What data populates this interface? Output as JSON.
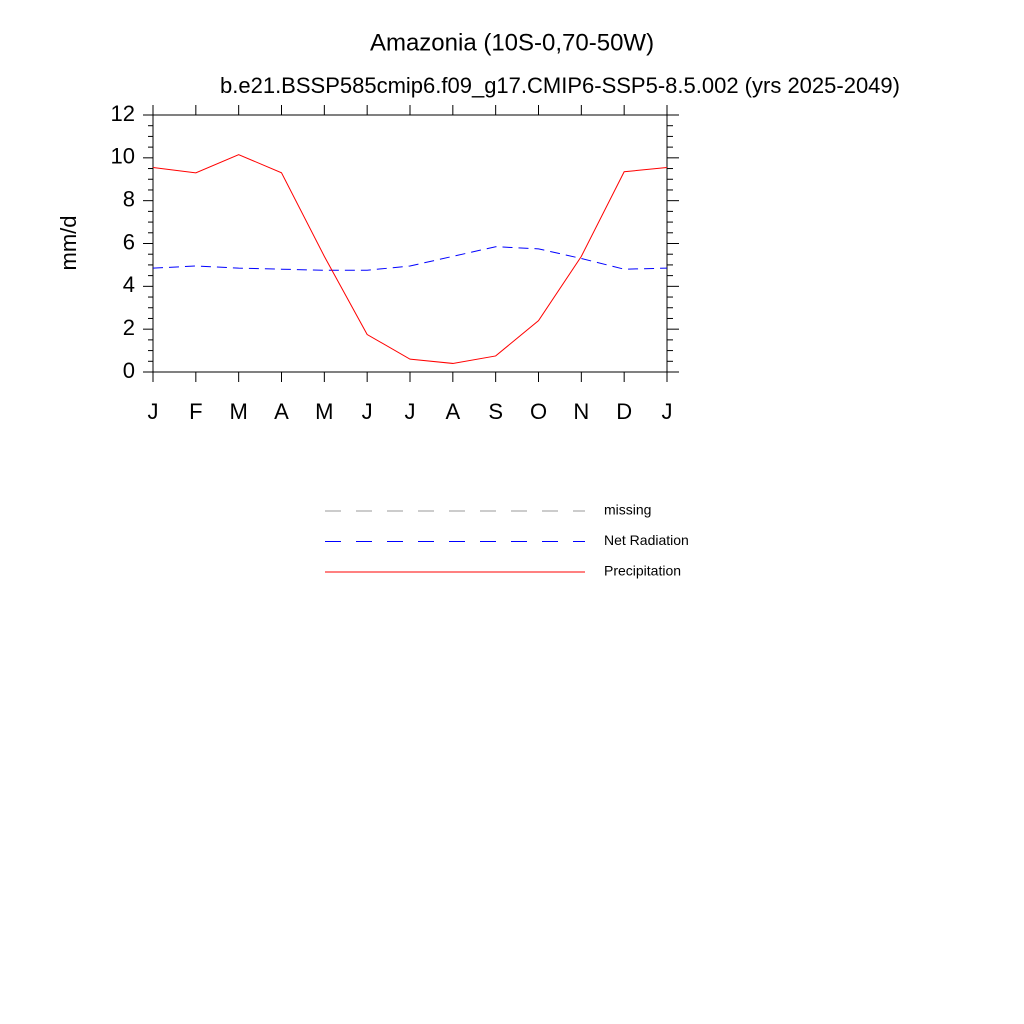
{
  "chart_data": {
    "type": "line",
    "title": "Amazonia (10S-0,70-50W)",
    "subtitle": "b.e21.BSSP585cmip6.f09_g17.CMIP6-SSP5-8.5.002 (yrs 2025-2049)",
    "y_label": "mm/d",
    "categories": [
      "J",
      "F",
      "M",
      "A",
      "M",
      "J",
      "J",
      "A",
      "S",
      "O",
      "N",
      "D",
      "J"
    ],
    "series": [
      {
        "name": "missing",
        "color": "#999999",
        "dashed": true,
        "values": [
          null,
          null,
          null,
          null,
          null,
          null,
          null,
          null,
          null,
          null,
          null,
          null,
          null
        ]
      },
      {
        "name": "Net Radiation",
        "color": "#0000ff",
        "dashed": true,
        "values": [
          4.85,
          4.95,
          4.85,
          4.8,
          4.75,
          4.75,
          4.95,
          5.4,
          5.85,
          5.75,
          5.3,
          4.8,
          4.85
        ]
      },
      {
        "name": "Precipitation",
        "color": "#ff0000",
        "dashed": false,
        "values": [
          9.55,
          9.3,
          10.15,
          9.3,
          5.4,
          1.75,
          0.6,
          0.4,
          0.75,
          2.4,
          5.4,
          9.35,
          9.55
        ]
      }
    ],
    "ylim": [
      0,
      12
    ],
    "yticks": [
      0,
      2,
      4,
      6,
      8,
      10,
      12
    ],
    "yminorticks": [
      0.5,
      1,
      1.5,
      2.5,
      3,
      3.5,
      4.5,
      5,
      5.5,
      6.5,
      7,
      7.5,
      8.5,
      9,
      9.5,
      10.5,
      11,
      11.5
    ]
  }
}
